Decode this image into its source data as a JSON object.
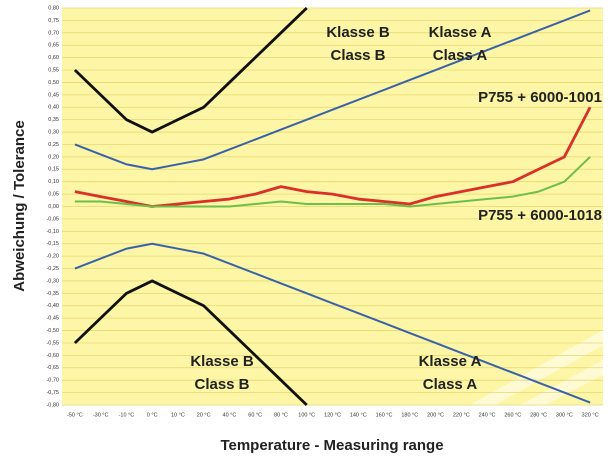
{
  "chart_data": {
    "type": "line",
    "ylabel": "Abweichung  /  Tolerance",
    "xlabel": "Temperature - Measuring range",
    "categories": [
      "-50 °C",
      "-30 °C",
      "-10 °C",
      "0 °C",
      "10 °C",
      "20 °C",
      "40 °C",
      "60 °C",
      "80 °C",
      "100 °C",
      "120 °C",
      "140 °C",
      "160 °C",
      "180 °C",
      "200 °C",
      "220 °C",
      "240 °C",
      "260 °C",
      "280 °C",
      "300 °C",
      "320 °C"
    ],
    "ylim": [
      -0.8,
      0.8
    ],
    "yticks": [
      {
        "value": 0.8,
        "label": "0,80"
      },
      {
        "value": 0.75,
        "label": "0,75"
      },
      {
        "value": 0.7,
        "label": "0,70"
      },
      {
        "value": 0.65,
        "label": "0,65"
      },
      {
        "value": 0.6,
        "label": "0,60"
      },
      {
        "value": 0.55,
        "label": "0,55"
      },
      {
        "value": 0.5,
        "label": "0,50"
      },
      {
        "value": 0.45,
        "label": "0,45"
      },
      {
        "value": 0.4,
        "label": "0,40"
      },
      {
        "value": 0.35,
        "label": "0,35"
      },
      {
        "value": 0.3,
        "label": "0,30"
      },
      {
        "value": 0.25,
        "label": "0,25"
      },
      {
        "value": 0.2,
        "label": "0,20"
      },
      {
        "value": 0.15,
        "label": "0,15"
      },
      {
        "value": 0.1,
        "label": "0,10"
      },
      {
        "value": 0.05,
        "label": "0,05"
      },
      {
        "value": 0,
        "label": "0,00"
      },
      {
        "value": -0.05,
        "label": "-0,05"
      },
      {
        "value": -0.1,
        "label": "-0,10"
      },
      {
        "value": -0.15,
        "label": "-0,15"
      },
      {
        "value": -0.2,
        "label": "-0,20"
      },
      {
        "value": -0.25,
        "label": "-0,25"
      },
      {
        "value": -0.3,
        "label": "-0,30"
      },
      {
        "value": -0.35,
        "label": "-0,35"
      },
      {
        "value": -0.4,
        "label": "-0,40"
      },
      {
        "value": -0.45,
        "label": "-0,45"
      },
      {
        "value": -0.5,
        "label": "-0,50"
      },
      {
        "value": -0.55,
        "label": "-0,55"
      },
      {
        "value": -0.6,
        "label": "-0,60"
      },
      {
        "value": -0.65,
        "label": "-0,65"
      },
      {
        "value": -0.7,
        "label": "-0,70"
      },
      {
        "value": -0.75,
        "label": "-0,75"
      },
      {
        "value": -0.8,
        "label": "-0,80"
      }
    ],
    "grid": true,
    "series": [
      {
        "color": "#111111",
        "values": [
          0.55,
          0.45,
          0.35,
          0.3,
          0.35,
          0.4,
          0.5,
          0.6,
          0.7,
          0.8,
          null,
          null,
          null,
          null,
          null,
          null,
          null,
          null,
          null,
          null,
          null
        ]
      },
      {
        "color": "#111111",
        "values": [
          -0.55,
          -0.45,
          -0.35,
          -0.3,
          -0.35,
          -0.4,
          -0.5,
          -0.6,
          -0.7,
          -0.8,
          null,
          null,
          null,
          null,
          null,
          null,
          null,
          null,
          null,
          null,
          null
        ]
      },
      {
        "color": "#3a62a8",
        "values": [
          0.25,
          0.21,
          0.17,
          0.15,
          0.17,
          0.19,
          0.23,
          0.27,
          0.31,
          0.35,
          0.39,
          0.43,
          0.47,
          0.51,
          0.55,
          0.59,
          0.63,
          0.67,
          0.71,
          0.75,
          0.79
        ]
      },
      {
        "color": "#3a62a8",
        "values": [
          -0.25,
          -0.21,
          -0.17,
          -0.15,
          -0.17,
          -0.19,
          -0.23,
          -0.27,
          -0.31,
          -0.35,
          -0.39,
          -0.43,
          -0.47,
          -0.51,
          -0.55,
          -0.59,
          -0.63,
          -0.67,
          -0.71,
          -0.75,
          -0.79
        ]
      },
      {
        "name": "P755 + 6000-1001",
        "color": "#d9302a",
        "values": [
          0.06,
          0.04,
          0.02,
          0.0,
          0.01,
          0.02,
          0.03,
          0.05,
          0.08,
          0.06,
          0.05,
          0.03,
          0.02,
          0.01,
          0.04,
          0.06,
          0.08,
          0.1,
          0.15,
          0.2,
          0.4
        ]
      },
      {
        "name": "P755 + 6000-1018",
        "color": "#6cbf4a",
        "values": [
          0.02,
          0.02,
          0.01,
          0.0,
          0.0,
          0.0,
          0.0,
          0.01,
          0.02,
          0.01,
          0.01,
          0.01,
          0.01,
          0.0,
          0.01,
          0.02,
          0.03,
          0.04,
          0.06,
          0.1,
          0.2
        ]
      }
    ],
    "annotations": [
      "Klasse B",
      "Class B",
      "Klasse A",
      "Class A",
      "Klasse B",
      "Class B",
      "Klasse A",
      "Class A"
    ]
  }
}
